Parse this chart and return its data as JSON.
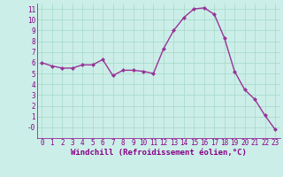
{
  "x": [
    0,
    1,
    2,
    3,
    4,
    5,
    6,
    7,
    8,
    9,
    10,
    11,
    12,
    13,
    14,
    15,
    16,
    17,
    18,
    19,
    20,
    21,
    22,
    23
  ],
  "y": [
    6.0,
    5.7,
    5.5,
    5.5,
    5.8,
    5.8,
    6.3,
    4.8,
    5.3,
    5.3,
    5.2,
    5.0,
    7.3,
    9.0,
    10.2,
    11.0,
    11.1,
    10.5,
    8.3,
    5.2,
    3.5,
    2.6,
    1.1,
    -0.2
  ],
  "line_color": "#993399",
  "marker": "D",
  "marker_size": 2.0,
  "bg_color": "#cceee8",
  "grid_color": "#aaddcc",
  "xlabel": "Windchill (Refroidissement éolien,°C)",
  "xlim": [
    -0.5,
    23.5
  ],
  "ylim": [
    -1.0,
    11.5
  ],
  "yticks": [
    0,
    1,
    2,
    3,
    4,
    5,
    6,
    7,
    8,
    9,
    10,
    11
  ],
  "ytick_labels": [
    "-0",
    "1",
    "2",
    "3",
    "4",
    "5",
    "6",
    "7",
    "8",
    "9",
    "10",
    "11"
  ],
  "xticks": [
    0,
    1,
    2,
    3,
    4,
    5,
    6,
    7,
    8,
    9,
    10,
    11,
    12,
    13,
    14,
    15,
    16,
    17,
    18,
    19,
    20,
    21,
    22,
    23
  ],
  "xlabel_fontsize": 6.5,
  "tick_fontsize": 5.5,
  "label_color": "#880088",
  "linewidth": 1.0
}
